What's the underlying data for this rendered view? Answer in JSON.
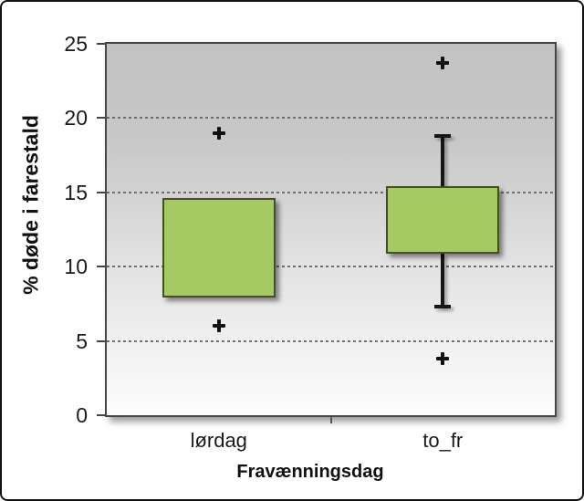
{
  "chart_data": {
    "type": "boxplot",
    "title": "",
    "xlabel": "Fravænningsdag",
    "ylabel": "% døde i farestald",
    "ylim": [
      0,
      25
    ],
    "yticks": [
      0,
      5,
      10,
      15,
      20,
      25
    ],
    "grid": "horizontal dashed gridlines at 5, 10, 15, 20; gradient gray-to-white plot background",
    "legend": "none",
    "categories": [
      "lørdag",
      "to_fr"
    ],
    "series": [
      {
        "category": "lørdag",
        "q1": 7.9,
        "q3": 14.6,
        "median": null,
        "whisker_low": null,
        "whisker_high": null,
        "outliers": [
          6.0,
          19.0
        ]
      },
      {
        "category": "to_fr",
        "q1": 10.9,
        "q3": 15.4,
        "median": null,
        "whisker_low": 7.3,
        "whisker_high": 18.8,
        "outliers": [
          3.8,
          23.7
        ]
      }
    ],
    "colors": {
      "box_fill": "#a5c963",
      "box_border": "#44511f",
      "whisker": "#161616",
      "outlier": "#101010",
      "plot_bg_top": "#c2c2c2",
      "plot_bg_bottom": "#fdfdfd",
      "gridline": "#6e6e6e",
      "axis": "#454545",
      "frame": "#121212"
    }
  }
}
